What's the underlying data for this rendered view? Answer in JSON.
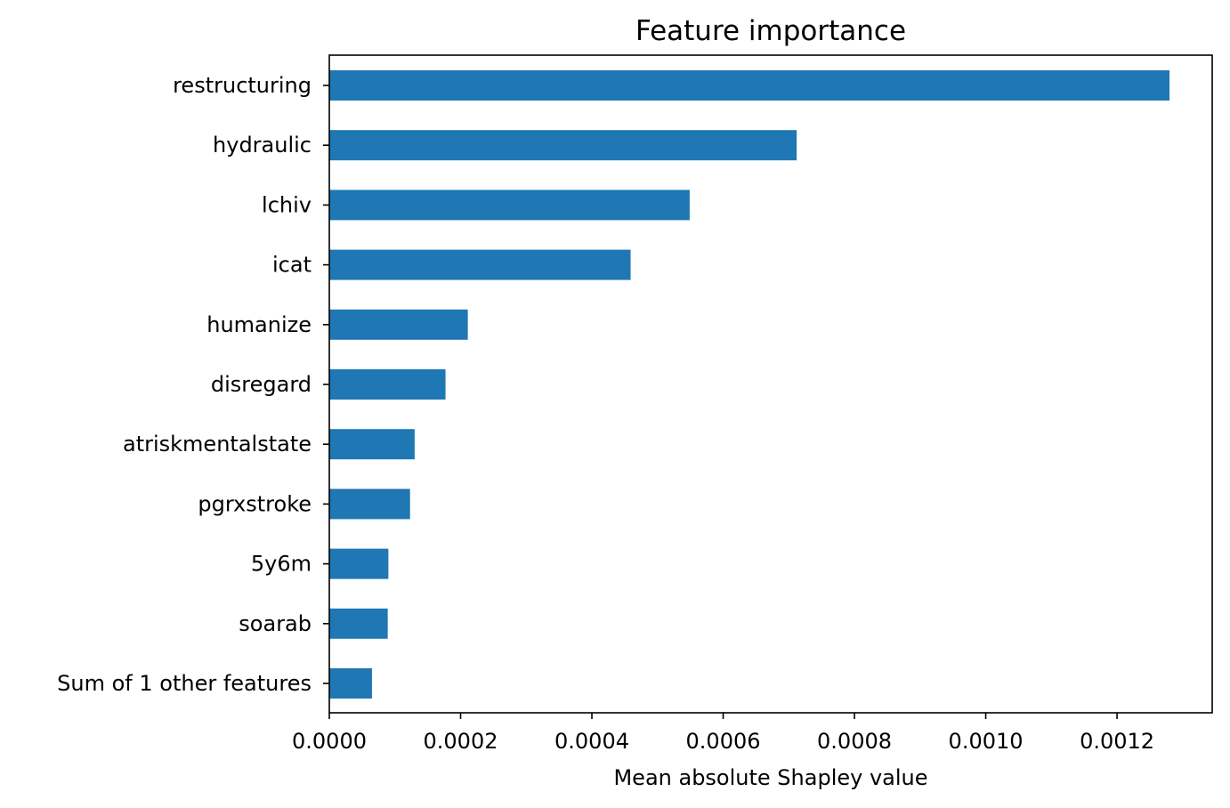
{
  "chart_data": {
    "type": "bar",
    "orientation": "horizontal",
    "title": "Feature importance",
    "xlabel": "Mean absolute Shapley value",
    "ylabel": "",
    "categories": [
      "restructuring",
      "hydraulic",
      "lchiv",
      "icat",
      "humanize",
      "disregard",
      "atriskmentalstate",
      "pgrxstroke",
      "5y6m",
      "soarab",
      "Sum of 1 other features"
    ],
    "values": [
      0.00128,
      0.000712,
      0.000549,
      0.000459,
      0.000211,
      0.000177,
      0.00013,
      0.000123,
      9e-05,
      8.9e-05,
      6.5e-05
    ],
    "xlim": [
      0,
      0.001345
    ],
    "xticks": [
      "0.0000",
      "0.0002",
      "0.0004",
      "0.0006",
      "0.0008",
      "0.0010",
      "0.0012"
    ],
    "xtick_values": [
      0,
      0.0002,
      0.0004,
      0.0006,
      0.0008,
      0.001,
      0.0012
    ],
    "bar_color": "#1f77b4",
    "grid": false,
    "legend": "none"
  }
}
